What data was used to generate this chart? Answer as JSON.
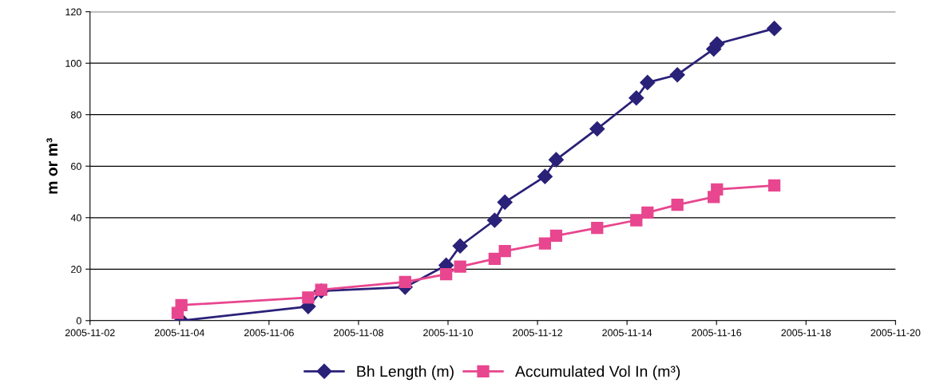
{
  "chart_data": {
    "type": "line",
    "ylabel": "m or m³",
    "xlim": [
      "2005-11-02",
      "2005-11-20"
    ],
    "xticks": [
      "2005-11-02",
      "2005-11-04",
      "2005-11-06",
      "2005-11-08",
      "2005-11-10",
      "2005-11-12",
      "2005-11-14",
      "2005-11-16",
      "2005-11-18",
      "2005-11-20"
    ],
    "ylim": [
      0,
      120
    ],
    "yticks": [
      0,
      20,
      40,
      60,
      80,
      100,
      120
    ],
    "grid": "y",
    "legend": "bottom",
    "line_style": "solid",
    "series": [
      {
        "name": "Bh Length (m)",
        "color": "#2a2178",
        "marker": "diamond",
        "x": [
          "2005-11-04T01:00",
          "2005-11-06T21:00",
          "2005-11-07T04:00",
          "2005-11-09T01:00",
          "2005-11-09T23:00",
          "2005-11-10T06:30",
          "2005-11-11T01:00",
          "2005-11-11T06:30",
          "2005-11-12T04:00",
          "2005-11-12T10:00",
          "2005-11-13T08:00",
          "2005-11-14T05:00",
          "2005-11-14T11:00",
          "2005-11-15T03:00",
          "2005-11-15T22:30",
          "2005-11-16T00:15",
          "2005-11-17T07:00"
        ],
        "values": [
          0,
          5.5,
          11.5,
          13,
          21.5,
          29,
          39,
          46,
          56,
          62.5,
          74.5,
          86.5,
          92.5,
          95.5,
          105.5,
          107.5,
          113.5
        ]
      },
      {
        "name": "Accumulated Vol In (m³)",
        "color": "#e8468f",
        "marker": "square",
        "x": [
          "2005-11-03T23:00",
          "2005-11-04T01:00",
          "2005-11-06T21:00",
          "2005-11-07T04:00",
          "2005-11-09T01:00",
          "2005-11-09T23:00",
          "2005-11-10T06:30",
          "2005-11-11T01:00",
          "2005-11-11T06:30",
          "2005-11-12T04:00",
          "2005-11-12T10:00",
          "2005-11-13T08:00",
          "2005-11-14T05:00",
          "2005-11-14T11:00",
          "2005-11-15T03:00",
          "2005-11-15T22:30",
          "2005-11-16T00:15",
          "2005-11-17T07:00"
        ],
        "values": [
          3,
          6,
          9,
          12,
          15,
          18,
          21,
          24,
          27,
          30,
          33,
          36,
          39,
          42,
          45,
          48,
          51,
          52.5
        ]
      }
    ]
  }
}
